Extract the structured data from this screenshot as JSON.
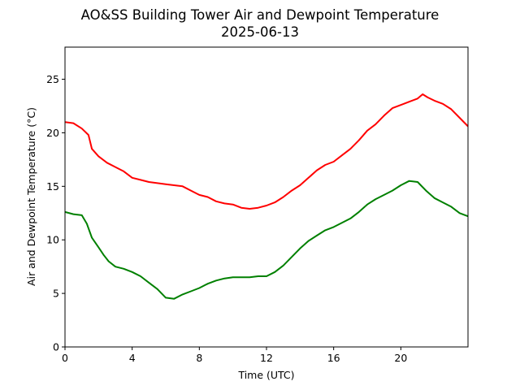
{
  "chart_data": {
    "type": "line",
    "title": "AO&SS Building Tower Air and Dewpoint Temperature",
    "subtitle": "2025-06-13",
    "xlabel": "Time (UTC)",
    "ylabel": "Air and Dewpoint Temperature (°C)",
    "xlim": [
      0,
      24
    ],
    "ylim": [
      0,
      28
    ],
    "xticks": [
      0,
      4,
      8,
      12,
      16,
      20
    ],
    "yticks": [
      0,
      5,
      10,
      15,
      20,
      25
    ],
    "grid": false,
    "legend": "none",
    "series": [
      {
        "color": "#ff0000",
        "x": [
          0,
          0.5,
          1,
          1.4,
          1.6,
          2,
          2.5,
          3,
          3.5,
          4,
          4.5,
          5,
          5.5,
          6,
          6.5,
          7,
          7.5,
          8,
          8.5,
          9,
          9.5,
          10,
          10.5,
          11,
          11.5,
          12,
          12.5,
          13,
          13.5,
          14,
          14.5,
          15,
          15.5,
          16,
          16.5,
          17,
          17.5,
          18,
          18.5,
          19,
          19.5,
          20,
          20.5,
          21,
          21.3,
          21.6,
          22,
          22.5,
          23,
          23.5,
          24
        ],
        "values": [
          21.0,
          20.9,
          20.4,
          19.8,
          18.5,
          17.8,
          17.2,
          16.8,
          16.4,
          15.8,
          15.6,
          15.4,
          15.3,
          15.2,
          15.1,
          15.0,
          14.6,
          14.2,
          14.0,
          13.6,
          13.4,
          13.3,
          13.0,
          12.9,
          13.0,
          13.2,
          13.5,
          14.0,
          14.6,
          15.1,
          15.8,
          16.5,
          17.0,
          17.3,
          17.9,
          18.5,
          19.3,
          20.2,
          20.8,
          21.6,
          22.3,
          22.6,
          22.9,
          23.2,
          23.6,
          23.3,
          23.0,
          22.7,
          22.2,
          21.4,
          20.6
        ]
      },
      {
        "color": "#008000",
        "x": [
          0,
          0.5,
          1,
          1.3,
          1.6,
          2,
          2.3,
          2.6,
          3,
          3.5,
          4,
          4.5,
          5,
          5.5,
          6,
          6.5,
          7,
          7.5,
          8,
          8.5,
          9,
          9.5,
          10,
          10.5,
          11,
          11.5,
          12,
          12.5,
          13,
          13.5,
          14,
          14.5,
          15,
          15.5,
          16,
          16.5,
          17,
          17.5,
          18,
          18.5,
          19,
          19.5,
          20,
          20.5,
          21,
          21.5,
          22,
          22.5,
          23,
          23.5,
          24
        ],
        "values": [
          12.6,
          12.4,
          12.3,
          11.5,
          10.2,
          9.3,
          8.6,
          8.0,
          7.5,
          7.3,
          7.0,
          6.6,
          6.0,
          5.4,
          4.6,
          4.5,
          4.9,
          5.2,
          5.5,
          5.9,
          6.2,
          6.4,
          6.5,
          6.5,
          6.5,
          6.6,
          6.6,
          7.0,
          7.6,
          8.4,
          9.2,
          9.9,
          10.4,
          10.9,
          11.2,
          11.6,
          12.0,
          12.6,
          13.3,
          13.8,
          14.2,
          14.6,
          15.1,
          15.5,
          15.4,
          14.6,
          13.9,
          13.5,
          13.1,
          12.5,
          12.2
        ]
      }
    ]
  }
}
